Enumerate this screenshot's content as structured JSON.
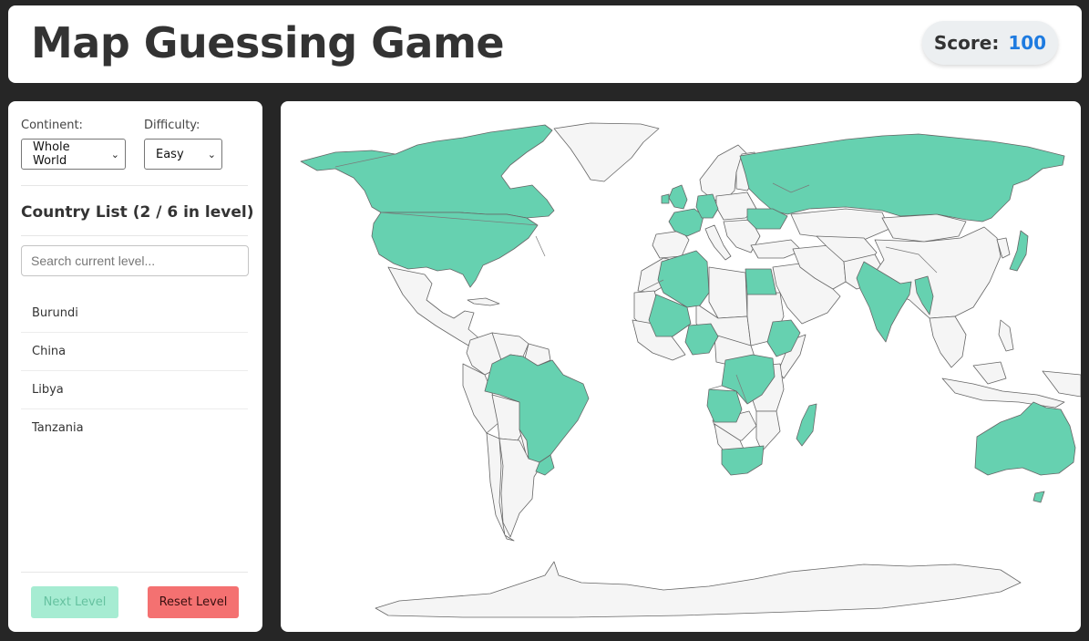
{
  "header": {
    "title": "Map Guessing Game",
    "score_label": "Score:",
    "score_value": "100"
  },
  "sidebar": {
    "continent_label": "Continent:",
    "continent_value": "Whole World",
    "difficulty_label": "Difficulty:",
    "difficulty_value": "Easy",
    "list_title": "Country List (2 / 6 in level)",
    "search_placeholder": "Search current level...",
    "countries": [
      "Burundi",
      "China",
      "Libya",
      "Tanzania"
    ],
    "next_button": "Next Level",
    "reset_button": "Reset Level"
  },
  "map": {
    "guessed_color": "#66d1b0",
    "unguessed_color": "#f5f5f5",
    "border_color": "#666666",
    "guessed_countries": [
      "Canada",
      "United States",
      "Brazil",
      "Uruguay",
      "United Kingdom",
      "France",
      "Germany",
      "Russia",
      "Ukraine",
      "Japan",
      "India",
      "Myanmar",
      "Algeria",
      "Mali",
      "Egypt",
      "Nigeria",
      "Ethiopia",
      "DR Congo",
      "Angola",
      "South Africa",
      "Madagascar",
      "Australia"
    ]
  }
}
